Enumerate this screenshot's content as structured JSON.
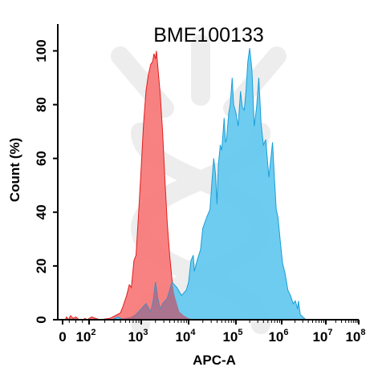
{
  "chart_data": {
    "type": "area",
    "title": "BME100133",
    "xlabel": "APC-A",
    "ylabel": "Count  (%)",
    "xscale": "biexponential/log",
    "xlim": [
      "0",
      "10^8"
    ],
    "ylim": [
      0,
      110
    ],
    "grid": false,
    "legend": "none",
    "x_ticks": [
      {
        "base": "0",
        "exp": ""
      },
      {
        "base": "10",
        "exp": "2"
      },
      {
        "base": "10",
        "exp": "3"
      },
      {
        "base": "10",
        "exp": "4"
      },
      {
        "base": "10",
        "exp": "5"
      },
      {
        "base": "10",
        "exp": "6"
      },
      {
        "base": "10",
        "exp": "7"
      },
      {
        "base": "10",
        "exp": "8"
      }
    ],
    "y_ticks": [
      "0",
      "20",
      "40",
      "60",
      "80",
      "100"
    ],
    "series": [
      {
        "fill": "#f87b7b",
        "stroke": "#e01e1e",
        "points": [
          [
            0.2,
            0
          ],
          [
            0.3,
            1
          ],
          [
            0.45,
            0
          ],
          [
            0.6,
            1.5
          ],
          [
            0.8,
            0.5
          ],
          [
            1.0,
            1
          ],
          [
            1.25,
            0
          ],
          [
            1.55,
            0
          ],
          [
            1.7,
            0.5
          ],
          [
            1.85,
            0
          ],
          [
            2.05,
            1
          ],
          [
            2.2,
            0
          ],
          [
            2.4,
            0.5
          ],
          [
            2.5,
            1.5
          ],
          [
            2.6,
            2.5
          ],
          [
            2.65,
            5
          ],
          [
            2.72,
            9
          ],
          [
            2.77,
            13
          ],
          [
            2.81,
            12
          ],
          [
            2.86,
            22
          ],
          [
            2.9,
            24
          ],
          [
            2.95,
            40
          ],
          [
            3.0,
            57
          ],
          [
            3.05,
            73
          ],
          [
            3.1,
            85
          ],
          [
            3.15,
            91
          ],
          [
            3.2,
            95
          ],
          [
            3.24,
            96
          ],
          [
            3.27,
            99
          ],
          [
            3.3,
            97
          ],
          [
            3.32,
            100
          ],
          [
            3.35,
            94
          ],
          [
            3.4,
            84
          ],
          [
            3.45,
            70
          ],
          [
            3.5,
            52
          ],
          [
            3.55,
            36
          ],
          [
            3.6,
            24
          ],
          [
            3.65,
            15
          ],
          [
            3.7,
            9
          ],
          [
            3.75,
            6
          ],
          [
            3.8,
            3
          ],
          [
            3.9,
            1.5
          ],
          [
            4.0,
            0.5
          ],
          [
            4.1,
            0
          ]
        ]
      },
      {
        "fill": "#66c9ef",
        "stroke": "#1a9fd8",
        "points": [
          [
            2.45,
            0
          ],
          [
            2.55,
            1
          ],
          [
            2.65,
            0
          ],
          [
            2.8,
            0
          ],
          [
            2.9,
            2
          ],
          [
            3.0,
            4
          ],
          [
            3.1,
            6
          ],
          [
            3.2,
            3
          ],
          [
            3.25,
            7
          ],
          [
            3.3,
            14
          ],
          [
            3.35,
            8
          ],
          [
            3.4,
            4
          ],
          [
            3.45,
            6
          ],
          [
            3.55,
            8
          ],
          [
            3.6,
            11
          ],
          [
            3.65,
            14
          ],
          [
            3.7,
            13
          ],
          [
            3.75,
            12
          ],
          [
            3.85,
            9
          ],
          [
            3.95,
            11
          ],
          [
            4.0,
            14
          ],
          [
            4.05,
            22
          ],
          [
            4.1,
            24
          ],
          [
            4.12,
            18
          ],
          [
            4.18,
            22
          ],
          [
            4.25,
            26
          ],
          [
            4.3,
            34
          ],
          [
            4.38,
            38
          ],
          [
            4.45,
            41
          ],
          [
            4.5,
            53
          ],
          [
            4.53,
            60
          ],
          [
            4.57,
            54
          ],
          [
            4.6,
            43
          ],
          [
            4.63,
            58
          ],
          [
            4.67,
            65
          ],
          [
            4.7,
            63
          ],
          [
            4.75,
            75
          ],
          [
            4.78,
            66
          ],
          [
            4.8,
            67
          ],
          [
            4.85,
            77
          ],
          [
            4.88,
            80
          ],
          [
            4.92,
            90
          ],
          [
            4.95,
            80
          ],
          [
            5.0,
            77
          ],
          [
            5.05,
            72
          ],
          [
            5.1,
            85
          ],
          [
            5.14,
            79
          ],
          [
            5.18,
            78
          ],
          [
            5.22,
            85
          ],
          [
            5.26,
            96
          ],
          [
            5.3,
            101
          ],
          [
            5.35,
            93
          ],
          [
            5.4,
            72
          ],
          [
            5.45,
            79
          ],
          [
            5.5,
            90
          ],
          [
            5.55,
            73
          ],
          [
            5.6,
            65
          ],
          [
            5.65,
            67
          ],
          [
            5.72,
            53
          ],
          [
            5.8,
            66
          ],
          [
            5.84,
            53
          ],
          [
            5.88,
            41
          ],
          [
            5.92,
            38
          ],
          [
            5.97,
            29
          ],
          [
            6.02,
            21
          ],
          [
            6.08,
            17
          ],
          [
            6.14,
            11
          ],
          [
            6.2,
            9
          ],
          [
            6.26,
            6
          ],
          [
            6.31,
            7
          ],
          [
            6.36,
            4
          ],
          [
            6.38,
            7
          ],
          [
            6.42,
            2
          ],
          [
            6.48,
            1
          ],
          [
            6.55,
            0
          ]
        ]
      },
      {
        "fill": "#b5647e",
        "stroke": "none",
        "points": [
          [
            2.55,
            0
          ],
          [
            2.65,
            0.5
          ],
          [
            2.8,
            1
          ],
          [
            2.9,
            2
          ],
          [
            3.0,
            4
          ],
          [
            3.1,
            6
          ],
          [
            3.2,
            3
          ],
          [
            3.25,
            7
          ],
          [
            3.3,
            14
          ],
          [
            3.35,
            8
          ],
          [
            3.4,
            4
          ],
          [
            3.45,
            6
          ],
          [
            3.55,
            8
          ],
          [
            3.6,
            11
          ],
          [
            3.65,
            14
          ],
          [
            3.7,
            9
          ],
          [
            3.75,
            6
          ],
          [
            3.8,
            3
          ],
          [
            3.9,
            1.5
          ],
          [
            4.0,
            0.5
          ],
          [
            4.1,
            0
          ]
        ]
      }
    ]
  }
}
